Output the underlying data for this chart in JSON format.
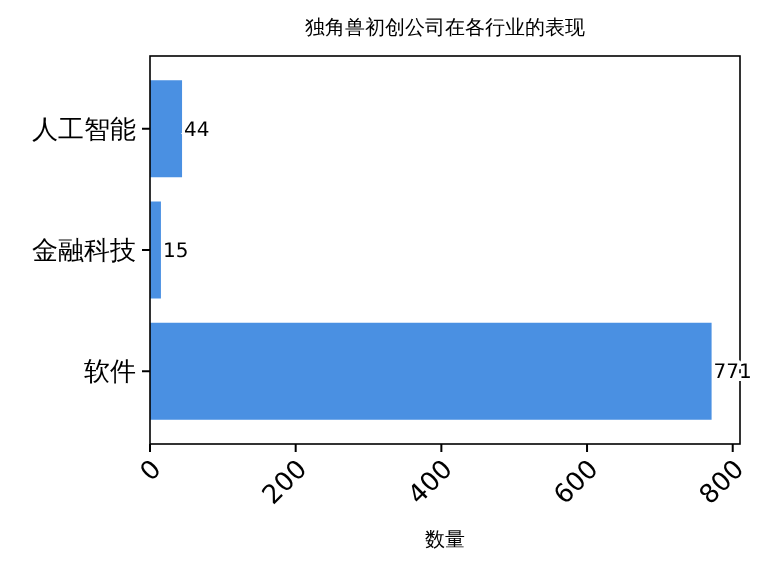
{
  "chart_data": {
    "type": "bar",
    "orientation": "horizontal",
    "title": "独角兽初创公司在各行业的表现",
    "xlabel": "数量",
    "categories": [
      "人工智能",
      "金融科技",
      "软件"
    ],
    "values": [
      44,
      15,
      771
    ],
    "color": "#4a90e2",
    "data_labels": true,
    "xlim": [
      0,
      810
    ],
    "xticks": [
      0,
      200,
      400,
      600,
      800
    ]
  }
}
